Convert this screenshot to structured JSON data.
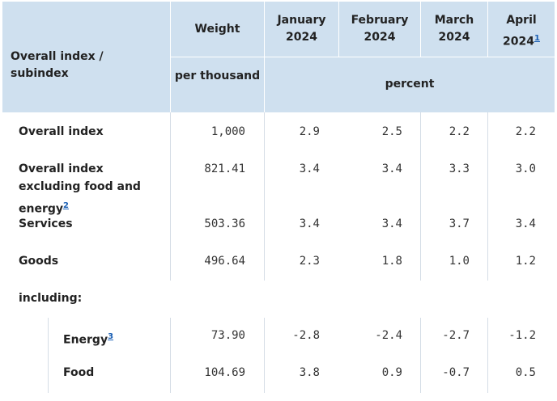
{
  "header": {
    "col0": "Overall index / subindex",
    "weight": "Weight",
    "unit_weight": "per thousand",
    "unit_pct": "percent",
    "months": [
      {
        "line1": "January",
        "line2": "2024",
        "note": ""
      },
      {
        "line1": "February",
        "line2": "2024",
        "note": ""
      },
      {
        "line1": "March",
        "line2": "2024",
        "note": ""
      },
      {
        "line1": "April",
        "line2": "2024",
        "note": "1"
      }
    ]
  },
  "rows": [
    {
      "label": "Overall index",
      "note": "",
      "weight": "1,000",
      "values": [
        "2.9",
        "2.5",
        "2.2",
        "2.2"
      ]
    },
    {
      "label": "Overall index excluding food and energy",
      "note": "2",
      "weight": "821.41",
      "values": [
        "3.4",
        "3.4",
        "3.3",
        "3.0"
      ]
    },
    {
      "label": "Services",
      "note": "",
      "weight": "503.36",
      "values": [
        "3.4",
        "3.4",
        "3.7",
        "3.4"
      ]
    },
    {
      "label": "Goods",
      "note": "",
      "weight": "496.64",
      "values": [
        "2.3",
        "1.8",
        "1.0",
        "1.2"
      ]
    }
  ],
  "including_label": "including:",
  "subrows": [
    {
      "label": "Energy",
      "note": "3",
      "weight": "73.90",
      "values": [
        "-2.8",
        "-2.4",
        "-2.7",
        "-1.2"
      ]
    },
    {
      "label": "Food",
      "note": "",
      "weight": "104.69",
      "values": [
        "3.8",
        "0.9",
        "-0.7",
        "0.5"
      ]
    }
  ]
}
